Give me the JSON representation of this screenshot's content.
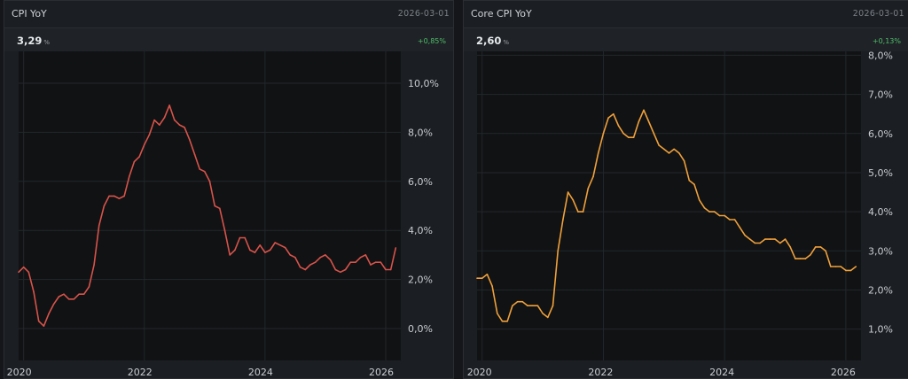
{
  "panels": [
    {
      "title": "CPI YoY",
      "date": "2026-03-01",
      "value": "3,29",
      "unit": "%",
      "change": "+0,85%",
      "color": "#d9534a"
    },
    {
      "title": "Core CPI YoY",
      "date": "2026-03-01",
      "value": "2,60",
      "unit": "%",
      "change": "+0,13%",
      "color": "#f0a03a"
    }
  ],
  "chart_data": [
    {
      "type": "line",
      "title": "CPI YoY",
      "x_ticks": [
        "2020",
        "2022",
        "2024",
        "2026"
      ],
      "y_ticks": [
        "0,0%",
        "2,0%",
        "4,0%",
        "6,0%",
        "8,0%",
        "10,0%"
      ],
      "y_tick_values": [
        0,
        2,
        4,
        6,
        8,
        10
      ],
      "ylim": [
        -1.3,
        11.3
      ],
      "xlim": [
        "2019-12",
        "2026-04"
      ],
      "grid": true,
      "series": [
        {
          "color": "#d9534a",
          "x": [
            "2019-12",
            "2020-01",
            "2020-02",
            "2020-03",
            "2020-04",
            "2020-05",
            "2020-06",
            "2020-07",
            "2020-08",
            "2020-09",
            "2020-10",
            "2020-11",
            "2020-12",
            "2021-01",
            "2021-02",
            "2021-03",
            "2021-04",
            "2021-05",
            "2021-06",
            "2021-07",
            "2021-08",
            "2021-09",
            "2021-10",
            "2021-11",
            "2021-12",
            "2022-01",
            "2022-02",
            "2022-03",
            "2022-04",
            "2022-05",
            "2022-06",
            "2022-07",
            "2022-08",
            "2022-09",
            "2022-10",
            "2022-11",
            "2022-12",
            "2023-01",
            "2023-02",
            "2023-03",
            "2023-04",
            "2023-05",
            "2023-06",
            "2023-07",
            "2023-08",
            "2023-09",
            "2023-10",
            "2023-11",
            "2023-12",
            "2024-01",
            "2024-02",
            "2024-03",
            "2024-04",
            "2024-05",
            "2024-06",
            "2024-07",
            "2024-08",
            "2024-09",
            "2024-10",
            "2024-11",
            "2024-12",
            "2025-01",
            "2025-02",
            "2025-03",
            "2025-04",
            "2025-05",
            "2025-06",
            "2025-07",
            "2025-08",
            "2025-09",
            "2025-10",
            "2025-11",
            "2025-12",
            "2026-01",
            "2026-02",
            "2026-03"
          ],
          "values": [
            2.3,
            2.5,
            2.3,
            1.5,
            0.3,
            0.1,
            0.6,
            1.0,
            1.3,
            1.4,
            1.2,
            1.2,
            1.4,
            1.4,
            1.7,
            2.6,
            4.2,
            5.0,
            5.4,
            5.4,
            5.3,
            5.4,
            6.2,
            6.8,
            7.0,
            7.5,
            7.9,
            8.5,
            8.3,
            8.6,
            9.1,
            8.5,
            8.3,
            8.2,
            7.7,
            7.1,
            6.5,
            6.4,
            6.0,
            5.0,
            4.9,
            4.0,
            3.0,
            3.2,
            3.7,
            3.7,
            3.2,
            3.1,
            3.4,
            3.1,
            3.2,
            3.5,
            3.4,
            3.3,
            3.0,
            2.9,
            2.5,
            2.4,
            2.6,
            2.7,
            2.9,
            3.0,
            2.8,
            2.4,
            2.3,
            2.4,
            2.7,
            2.7,
            2.9,
            3.0,
            2.6,
            2.7,
            2.7,
            2.4,
            2.4,
            3.29
          ]
        }
      ]
    },
    {
      "type": "line",
      "title": "Core CPI YoY",
      "x_ticks": [
        "2020",
        "2022",
        "2024",
        "2026"
      ],
      "y_ticks": [
        "1,0%",
        "2,0%",
        "3,0%",
        "4,0%",
        "5,0%",
        "6,0%",
        "7,0%",
        "8,0%"
      ],
      "y_tick_values": [
        1,
        2,
        3,
        4,
        5,
        6,
        7,
        8
      ],
      "ylim": [
        0.2,
        8.1
      ],
      "xlim": [
        "2019-12",
        "2026-04"
      ],
      "grid": true,
      "series": [
        {
          "color": "#f0a03a",
          "x": [
            "2019-12",
            "2020-01",
            "2020-02",
            "2020-03",
            "2020-04",
            "2020-05",
            "2020-06",
            "2020-07",
            "2020-08",
            "2020-09",
            "2020-10",
            "2020-11",
            "2020-12",
            "2021-01",
            "2021-02",
            "2021-03",
            "2021-04",
            "2021-05",
            "2021-06",
            "2021-07",
            "2021-08",
            "2021-09",
            "2021-10",
            "2021-11",
            "2021-12",
            "2022-01",
            "2022-02",
            "2022-03",
            "2022-04",
            "2022-05",
            "2022-06",
            "2022-07",
            "2022-08",
            "2022-09",
            "2022-10",
            "2022-11",
            "2022-12",
            "2023-01",
            "2023-02",
            "2023-03",
            "2023-04",
            "2023-05",
            "2023-06",
            "2023-07",
            "2023-08",
            "2023-09",
            "2023-10",
            "2023-11",
            "2023-12",
            "2024-01",
            "2024-02",
            "2024-03",
            "2024-04",
            "2024-05",
            "2024-06",
            "2024-07",
            "2024-08",
            "2024-09",
            "2024-10",
            "2024-11",
            "2024-12",
            "2025-01",
            "2025-02",
            "2025-03",
            "2025-04",
            "2025-05",
            "2025-06",
            "2025-07",
            "2025-08",
            "2025-09",
            "2025-10",
            "2025-11",
            "2025-12",
            "2026-01",
            "2026-02",
            "2026-03"
          ],
          "values": [
            2.3,
            2.3,
            2.4,
            2.1,
            1.4,
            1.2,
            1.2,
            1.6,
            1.7,
            1.7,
            1.6,
            1.6,
            1.6,
            1.4,
            1.3,
            1.6,
            3.0,
            3.8,
            4.5,
            4.3,
            4.0,
            4.0,
            4.6,
            4.9,
            5.5,
            6.0,
            6.4,
            6.5,
            6.2,
            6.0,
            5.9,
            5.9,
            6.3,
            6.6,
            6.3,
            6.0,
            5.7,
            5.6,
            5.5,
            5.6,
            5.5,
            5.3,
            4.8,
            4.7,
            4.3,
            4.1,
            4.0,
            4.0,
            3.9,
            3.9,
            3.8,
            3.8,
            3.6,
            3.4,
            3.3,
            3.2,
            3.2,
            3.3,
            3.3,
            3.3,
            3.2,
            3.3,
            3.1,
            2.8,
            2.8,
            2.8,
            2.9,
            3.1,
            3.1,
            3.0,
            2.6,
            2.6,
            2.6,
            2.5,
            2.5,
            2.6
          ]
        }
      ]
    }
  ]
}
